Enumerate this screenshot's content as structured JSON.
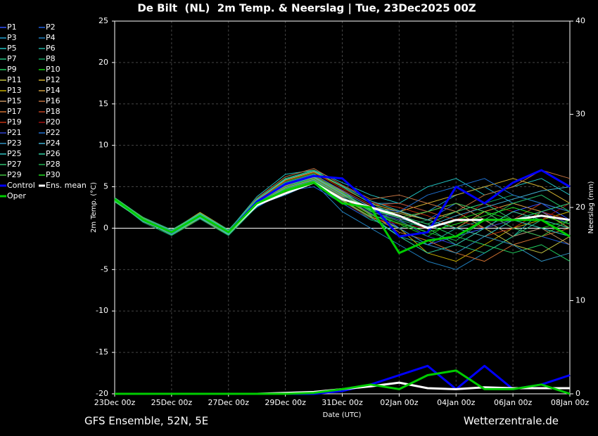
{
  "chart_data": {
    "type": "line",
    "title": "De Bilt  (NL)  2m Temp. & Neerslag | Tue, 23Dec2025 00Z",
    "subtitle_left": "GFS Ensemble, 52N, 5E",
    "subtitle_right": "Wetterzentrale.de",
    "x_label": "Date (UTC)",
    "y_label": "2m Temp. (°C)",
    "y2_label": "Neerslag (mm)",
    "x": [
      0,
      24,
      48,
      72,
      96,
      120,
      144,
      168,
      192,
      216,
      240,
      264,
      288,
      312,
      336,
      360,
      384
    ],
    "xlim": [
      0,
      384
    ],
    "xticks": [
      {
        "value": 0,
        "label": "23Dec 00z"
      },
      {
        "value": 48,
        "label": "25Dec 00z"
      },
      {
        "value": 96,
        "label": "27Dec 00z"
      },
      {
        "value": 144,
        "label": "29Dec 00z"
      },
      {
        "value": 192,
        "label": "31Dec 00z"
      },
      {
        "value": 240,
        "label": "02Jan 00z"
      },
      {
        "value": 288,
        "label": "04Jan 00z"
      },
      {
        "value": 336,
        "label": "06Jan 00z"
      },
      {
        "value": 384,
        "label": "08Jan 00z"
      }
    ],
    "ylim": [
      -20,
      25
    ],
    "yticks": [
      -20,
      -15,
      -10,
      -5,
      0,
      5,
      10,
      15,
      20,
      25
    ],
    "y2lim": [
      0,
      40
    ],
    "y2ticks": [
      0,
      10,
      20,
      30,
      40
    ],
    "grid": true,
    "legend": "left",
    "series": [
      {
        "name": "P1",
        "color": "#3050ff",
        "values": [
          3.2,
          1.2,
          -0.8,
          1.3,
          -0.7,
          3.5,
          5.5,
          6.5,
          4.5,
          2.5,
          0,
          -2,
          -1,
          0,
          2,
          3,
          1
        ]
      },
      {
        "name": "P2",
        "color": "#2060e0",
        "values": [
          3.6,
          0.8,
          -0.3,
          1.7,
          -0.2,
          2.5,
          4.5,
          5,
          3,
          1,
          2,
          1,
          3,
          2,
          0,
          -1,
          -2
        ]
      },
      {
        "name": "P3",
        "color": "#20a0d0",
        "values": [
          3.4,
          1.1,
          -0.6,
          1.5,
          -0.4,
          3.2,
          6,
          7,
          5,
          3,
          3,
          2,
          4,
          5,
          3,
          4,
          2
        ]
      },
      {
        "name": "P4",
        "color": "#2080c0",
        "values": [
          3.5,
          0.9,
          -0.7,
          1.2,
          -0.8,
          2.8,
          4,
          5.5,
          2,
          0,
          -2,
          -4,
          -5,
          -3,
          -1,
          0,
          -1
        ]
      },
      {
        "name": "P5",
        "color": "#20c0c0",
        "values": [
          3.3,
          1.3,
          -0.4,
          1.8,
          -0.3,
          3.8,
          6.5,
          7,
          5.5,
          4,
          3,
          5,
          6,
          4,
          5,
          6,
          4
        ]
      },
      {
        "name": "P6",
        "color": "#20b0a0",
        "values": [
          3.7,
          1,
          -0.5,
          1.4,
          -0.6,
          2.7,
          5,
          6.2,
          4.2,
          1.5,
          -1,
          -2,
          0,
          1,
          -1,
          2,
          3
        ]
      },
      {
        "name": "P7",
        "color": "#20c080",
        "values": [
          3.5,
          1.2,
          -0.2,
          1.6,
          -0.4,
          3,
          5.2,
          6,
          4.5,
          2,
          1,
          0,
          -2,
          -3,
          -1,
          1,
          0
        ]
      },
      {
        "name": "P8",
        "color": "#10a060",
        "values": [
          3.4,
          0.7,
          -0.9,
          1.1,
          -0.9,
          2.6,
          4.8,
          5.8,
          3.5,
          1,
          0,
          1,
          2,
          3,
          4,
          3,
          2
        ]
      },
      {
        "name": "P9",
        "color": "#20d060",
        "values": [
          3.6,
          1.1,
          -0.5,
          1.5,
          -0.5,
          3.1,
          5,
          6.1,
          4,
          2.2,
          1.5,
          0.5,
          -1,
          -2,
          -3,
          -2,
          -4
        ]
      },
      {
        "name": "P10",
        "color": "#10d010",
        "values": [
          3.3,
          1,
          -0.6,
          1.6,
          -0.5,
          3.3,
          5.6,
          6.6,
          4.3,
          2.1,
          0.5,
          -1,
          1,
          2,
          1,
          0,
          1
        ]
      },
      {
        "name": "P11",
        "color": "#c0c040",
        "values": [
          3.5,
          1,
          -0.4,
          1.4,
          -0.6,
          2.9,
          4.9,
          5.9,
          3.9,
          2.4,
          1.8,
          1,
          2,
          0,
          -2,
          -3,
          -1
        ]
      },
      {
        "name": "P12",
        "color": "#d0b030",
        "values": [
          3.6,
          1.3,
          -0.3,
          1.9,
          -0.2,
          3.4,
          5.8,
          6.8,
          5,
          3,
          2,
          3,
          4,
          5,
          6,
          5,
          3
        ]
      },
      {
        "name": "P13",
        "color": "#c8b000",
        "values": [
          3.2,
          0.9,
          -0.8,
          1.2,
          -0.8,
          2.8,
          4.6,
          5.6,
          3.4,
          1.4,
          0,
          -3,
          -4,
          -2,
          0,
          1,
          2
        ]
      },
      {
        "name": "P14",
        "color": "#d0a040",
        "values": [
          3.4,
          1.1,
          -0.5,
          1.5,
          -0.5,
          3,
          5.1,
          6.3,
          4.4,
          2.6,
          2,
          1,
          0,
          2,
          3,
          2,
          0
        ]
      },
      {
        "name": "P15",
        "color": "#c09060",
        "values": [
          3.5,
          1.2,
          -0.6,
          1.3,
          -0.6,
          3.2,
          5.3,
          6.1,
          4.1,
          2,
          1,
          2,
          3,
          1,
          -1,
          0,
          -2
        ]
      },
      {
        "name": "P16",
        "color": "#c07040",
        "values": [
          3.7,
          0.8,
          -0.7,
          1.7,
          -0.3,
          3.6,
          6.2,
          7.2,
          5.2,
          3.5,
          4,
          3,
          2,
          4,
          5,
          7,
          6
        ]
      },
      {
        "name": "P17",
        "color": "#d07030",
        "values": [
          3.3,
          1,
          -0.4,
          1.4,
          -0.7,
          2.9,
          4.7,
          5.7,
          3.7,
          1.7,
          -0.5,
          -1.5,
          -3,
          -4,
          -2,
          -1,
          0
        ]
      },
      {
        "name": "P18",
        "color": "#c04020",
        "values": [
          3.5,
          1.1,
          -0.5,
          1.6,
          -0.4,
          3.1,
          5.4,
          6.4,
          4.6,
          2.8,
          3,
          2,
          1,
          0,
          1,
          3,
          2
        ]
      },
      {
        "name": "P19",
        "color": "#c03010",
        "values": [
          3.4,
          1.2,
          -0.6,
          1.5,
          -0.5,
          3.3,
          5.7,
          6.7,
          4.8,
          3.1,
          2.5,
          1.5,
          0,
          -1,
          0,
          2,
          1
        ]
      },
      {
        "name": "P20",
        "color": "#a01010",
        "values": [
          3.6,
          0.9,
          -0.4,
          1.3,
          -0.6,
          2.7,
          4.4,
          5.4,
          3.2,
          1.2,
          0.5,
          0,
          1,
          3,
          2,
          1,
          3
        ]
      },
      {
        "name": "P21",
        "color": "#3040d0",
        "values": [
          3.5,
          1,
          -0.5,
          1.5,
          -0.5,
          3,
          5,
          6,
          4,
          2,
          1,
          -1,
          -2,
          0,
          1,
          2,
          0.5
        ]
      },
      {
        "name": "P22",
        "color": "#2070d0",
        "values": [
          3.3,
          1.1,
          -0.7,
          1.4,
          -0.6,
          3.2,
          5.5,
          6.5,
          4.5,
          2.5,
          2,
          4,
          5,
          6,
          4,
          3,
          2
        ]
      },
      {
        "name": "P23",
        "color": "#3090c0",
        "values": [
          3.6,
          1.2,
          -0.3,
          1.6,
          -0.4,
          2.9,
          4.8,
          5.8,
          3.8,
          1.8,
          0,
          -2,
          -3,
          -1,
          -2,
          -4,
          -3
        ]
      },
      {
        "name": "P24",
        "color": "#40b0d0",
        "values": [
          3.4,
          0.8,
          -0.6,
          1.2,
          -0.7,
          3.1,
          5.2,
          6.2,
          4.2,
          2.2,
          1.2,
          0.2,
          1.5,
          2.5,
          3.5,
          4.5,
          5
        ]
      },
      {
        "name": "P25",
        "color": "#30c0c0",
        "values": [
          3.5,
          1.1,
          -0.4,
          1.7,
          -0.3,
          3.4,
          5.9,
          6.9,
          5.1,
          3.3,
          2.1,
          1,
          0,
          -1,
          1,
          0,
          -1
        ]
      },
      {
        "name": "P26",
        "color": "#30d0a0",
        "values": [
          3.2,
          0.9,
          -0.8,
          1.3,
          -0.8,
          2.6,
          4.5,
          5.5,
          3.3,
          1.3,
          -1,
          -3,
          -2,
          0,
          2,
          1,
          0
        ]
      },
      {
        "name": "P27",
        "color": "#30c070",
        "values": [
          3.7,
          1.3,
          -0.2,
          1.8,
          -0.2,
          3.5,
          6,
          7,
          5,
          3,
          1.5,
          0.5,
          2,
          3,
          1,
          2,
          3
        ]
      },
      {
        "name": "P28",
        "color": "#20b050",
        "values": [
          3.4,
          1,
          -0.5,
          1.5,
          -0.5,
          3,
          5,
          6,
          4,
          2,
          0.8,
          -0.5,
          -1.5,
          1,
          3,
          4,
          2
        ]
      },
      {
        "name": "P29",
        "color": "#40c040",
        "values": [
          3.5,
          1.2,
          -0.6,
          1.4,
          -0.6,
          3.2,
          5.3,
          6.3,
          4.3,
          2.3,
          1.3,
          2,
          3,
          2,
          0,
          -1,
          1
        ]
      },
      {
        "name": "P30",
        "color": "#20e020",
        "values": [
          3.3,
          1,
          -0.4,
          1.6,
          -0.4,
          2.8,
          4.7,
          5.7,
          3.6,
          1.6,
          0.6,
          -0.5,
          0.5,
          1.5,
          2.5,
          1.5,
          0.5
        ]
      },
      {
        "name": "Control",
        "color": "#0000ff",
        "width": 3,
        "values": [
          3.5,
          1,
          -0.5,
          1.5,
          -0.5,
          3.2,
          5.3,
          6.3,
          6,
          3,
          -1,
          -0.5,
          5,
          3,
          5.5,
          7,
          5
        ],
        "precip": [
          0,
          0,
          0,
          0,
          0,
          0,
          0,
          0,
          0.3,
          1,
          2,
          3,
          0.5,
          3,
          0.5,
          1,
          2
        ]
      },
      {
        "name": "Ens. mean",
        "color": "#ffffff",
        "width": 3,
        "values": [
          3.5,
          1,
          -0.5,
          1.5,
          -0.5,
          2.8,
          4.2,
          5.5,
          3.5,
          2.5,
          1.5,
          0,
          1,
          1,
          1,
          1.5,
          1
        ],
        "precip": [
          0,
          0,
          0,
          0,
          0,
          0,
          0.1,
          0.2,
          0.5,
          0.8,
          1.2,
          0.6,
          0.5,
          0.7,
          0.6,
          0.6,
          0.6
        ]
      },
      {
        "name": "Oper",
        "color": "#00cc00",
        "width": 3,
        "values": [
          3.5,
          1,
          -0.5,
          1.5,
          -0.5,
          3,
          4.5,
          5.5,
          3,
          2.5,
          -3,
          -1.5,
          -1,
          1,
          1,
          1,
          -1
        ],
        "precip": [
          0,
          0,
          0,
          0,
          0,
          0,
          0,
          0.1,
          0.5,
          1,
          0.5,
          2,
          2.5,
          0.5,
          0.5,
          1,
          0
        ]
      }
    ]
  }
}
